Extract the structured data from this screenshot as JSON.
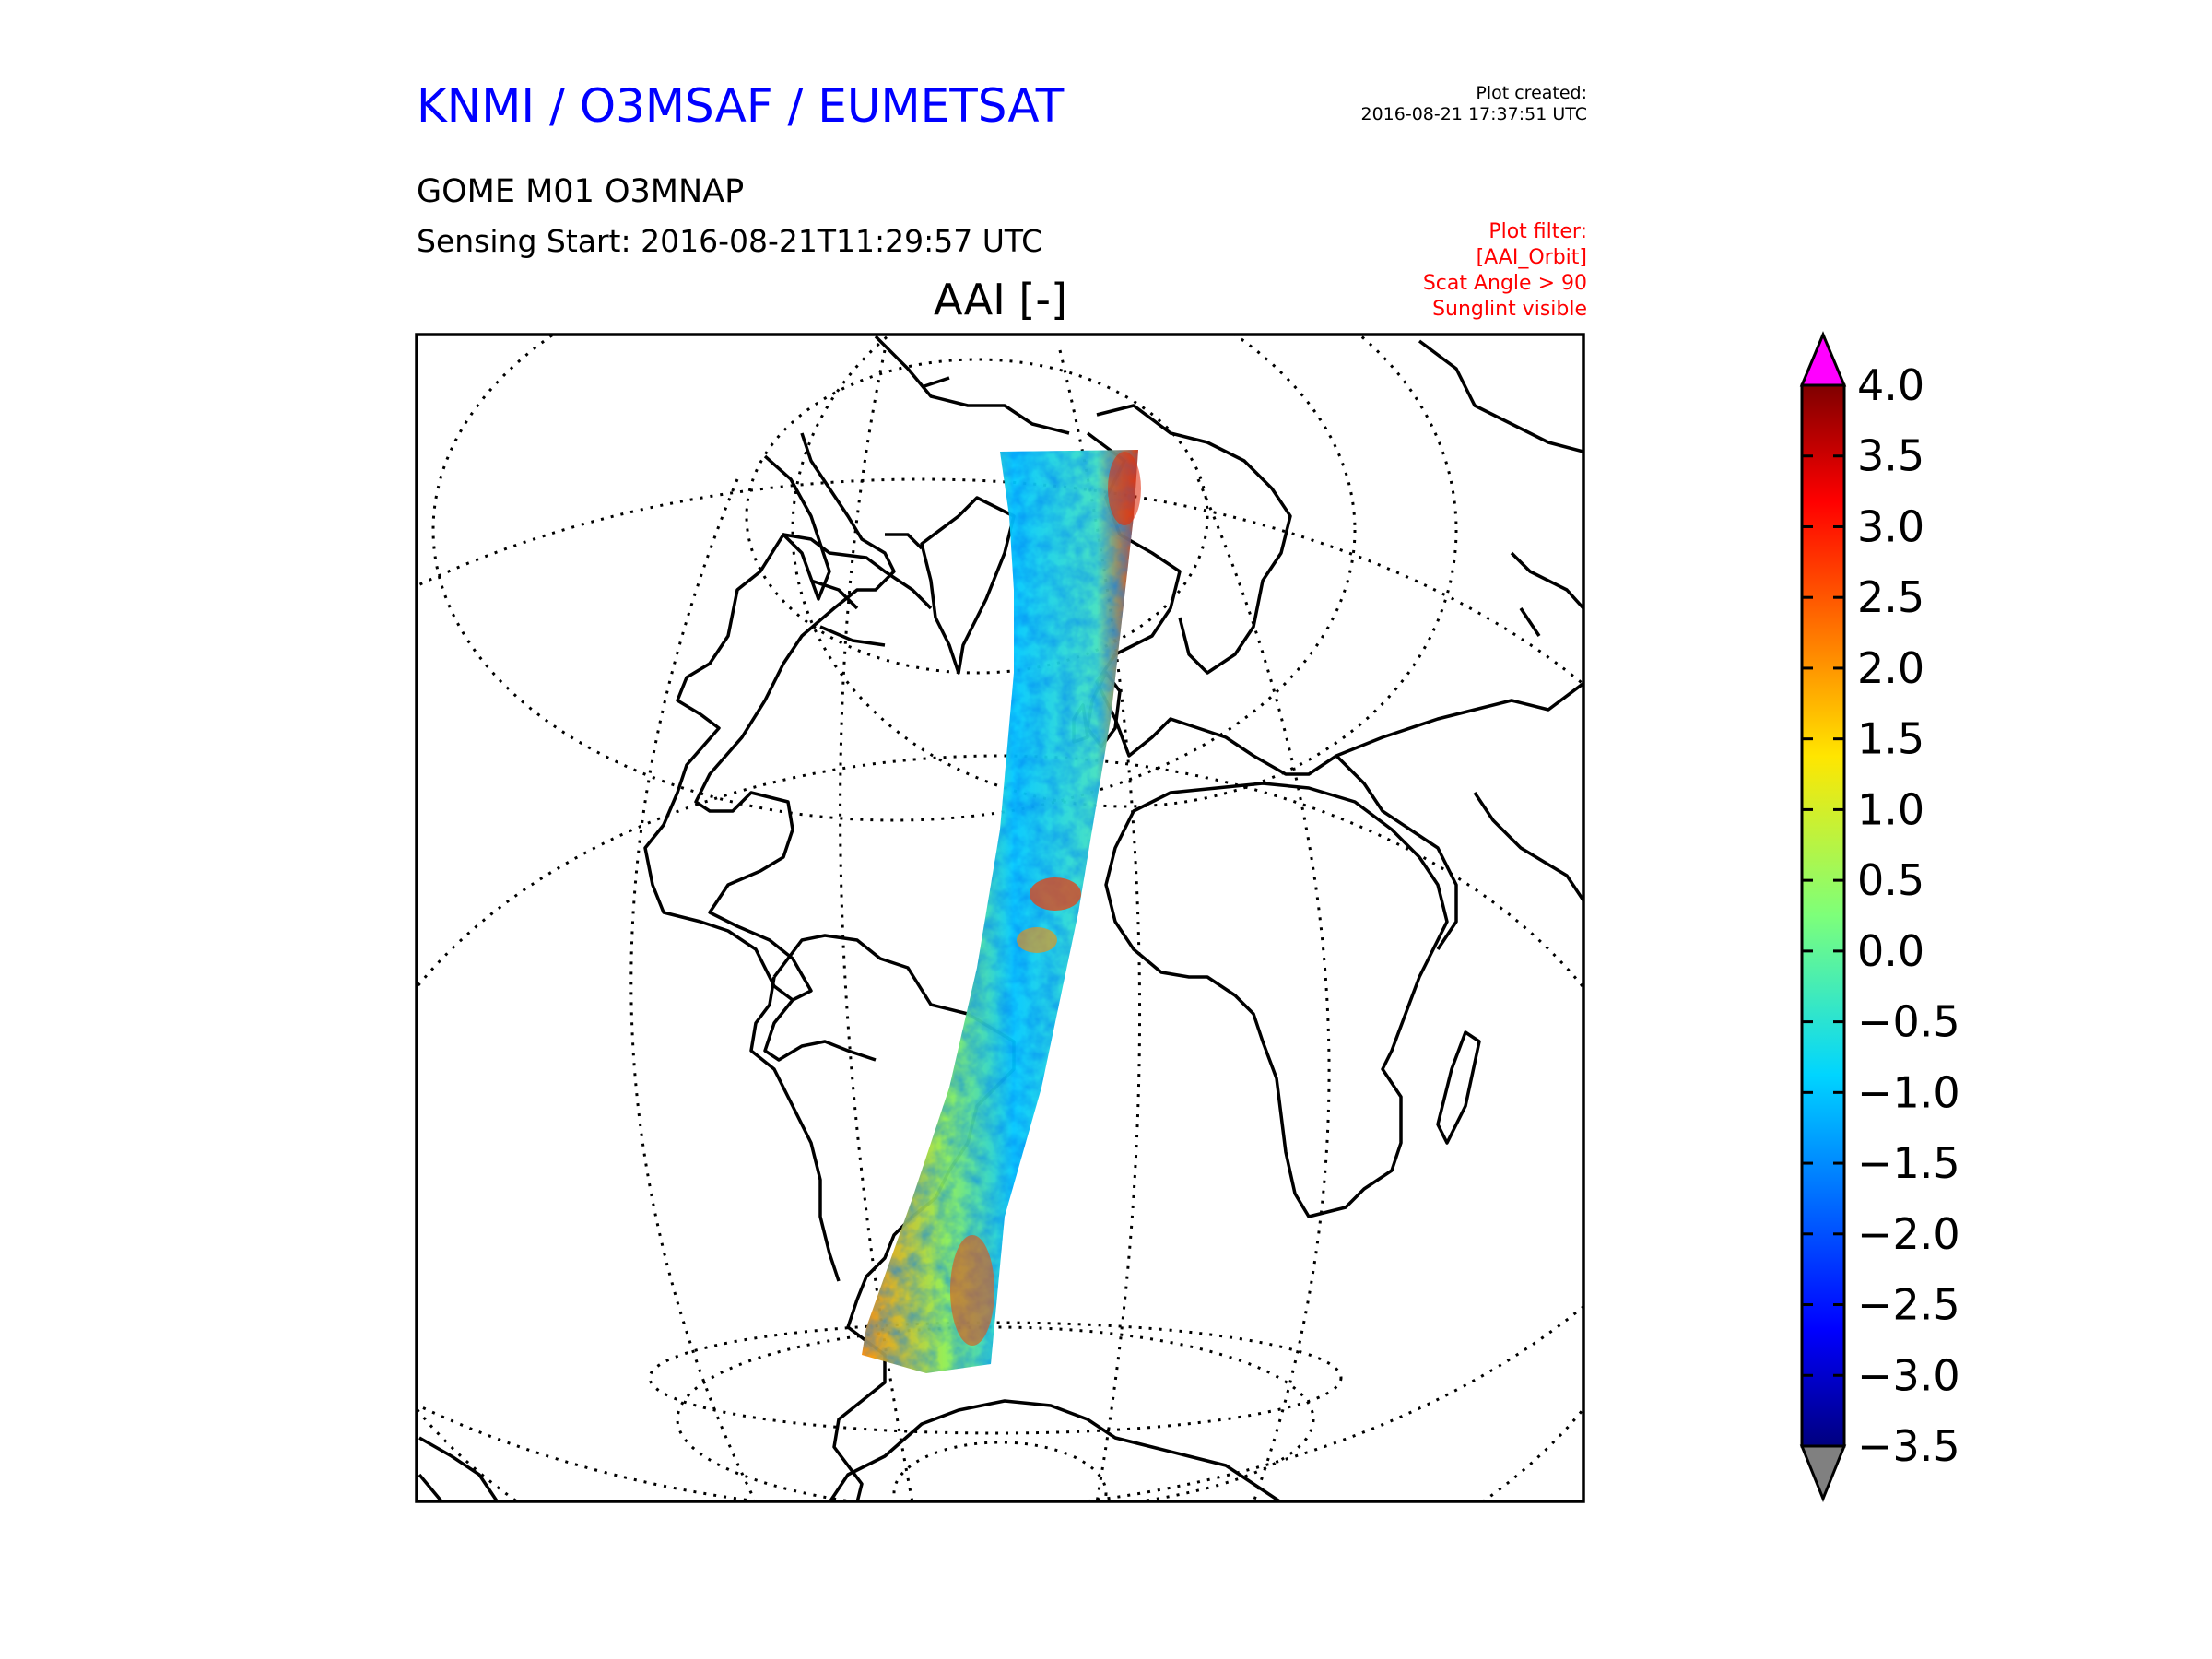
{
  "header": {
    "organisation": "KNMI / O3MSAF / EUMETSAT",
    "plot_created_label": "Plot created:",
    "plot_created_time": "2016-08-21 17:37:51 UTC",
    "product": "GOME M01 O3MNAP",
    "sensing_start": "Sensing Start: 2016-08-21T11:29:57 UTC",
    "plot_filter": [
      "Plot filter:",
      "[AAI_Orbit]",
      "Scat Angle > 90",
      "Sunglint visible"
    ]
  },
  "map": {
    "title": "AAI [-]",
    "projection": "orthographic",
    "graticule": "dotted",
    "swath_colors": [
      "#1e90ff",
      "#00c8ff",
      "#40e0c0",
      "#90ee50",
      "#f0e020",
      "#ff8c00",
      "#e03000"
    ]
  },
  "colorbar": {
    "ticks": [
      "4.0",
      "3.5",
      "3.0",
      "2.5",
      "2.0",
      "1.5",
      "1.0",
      "0.5",
      "0.0",
      "−0.5",
      "−1.0",
      "−1.5",
      "−2.0",
      "−2.5",
      "−3.0",
      "−3.5"
    ],
    "range": [
      -3.5,
      4.0
    ],
    "over_color": "#ff00ff",
    "under_color": "#808080"
  }
}
